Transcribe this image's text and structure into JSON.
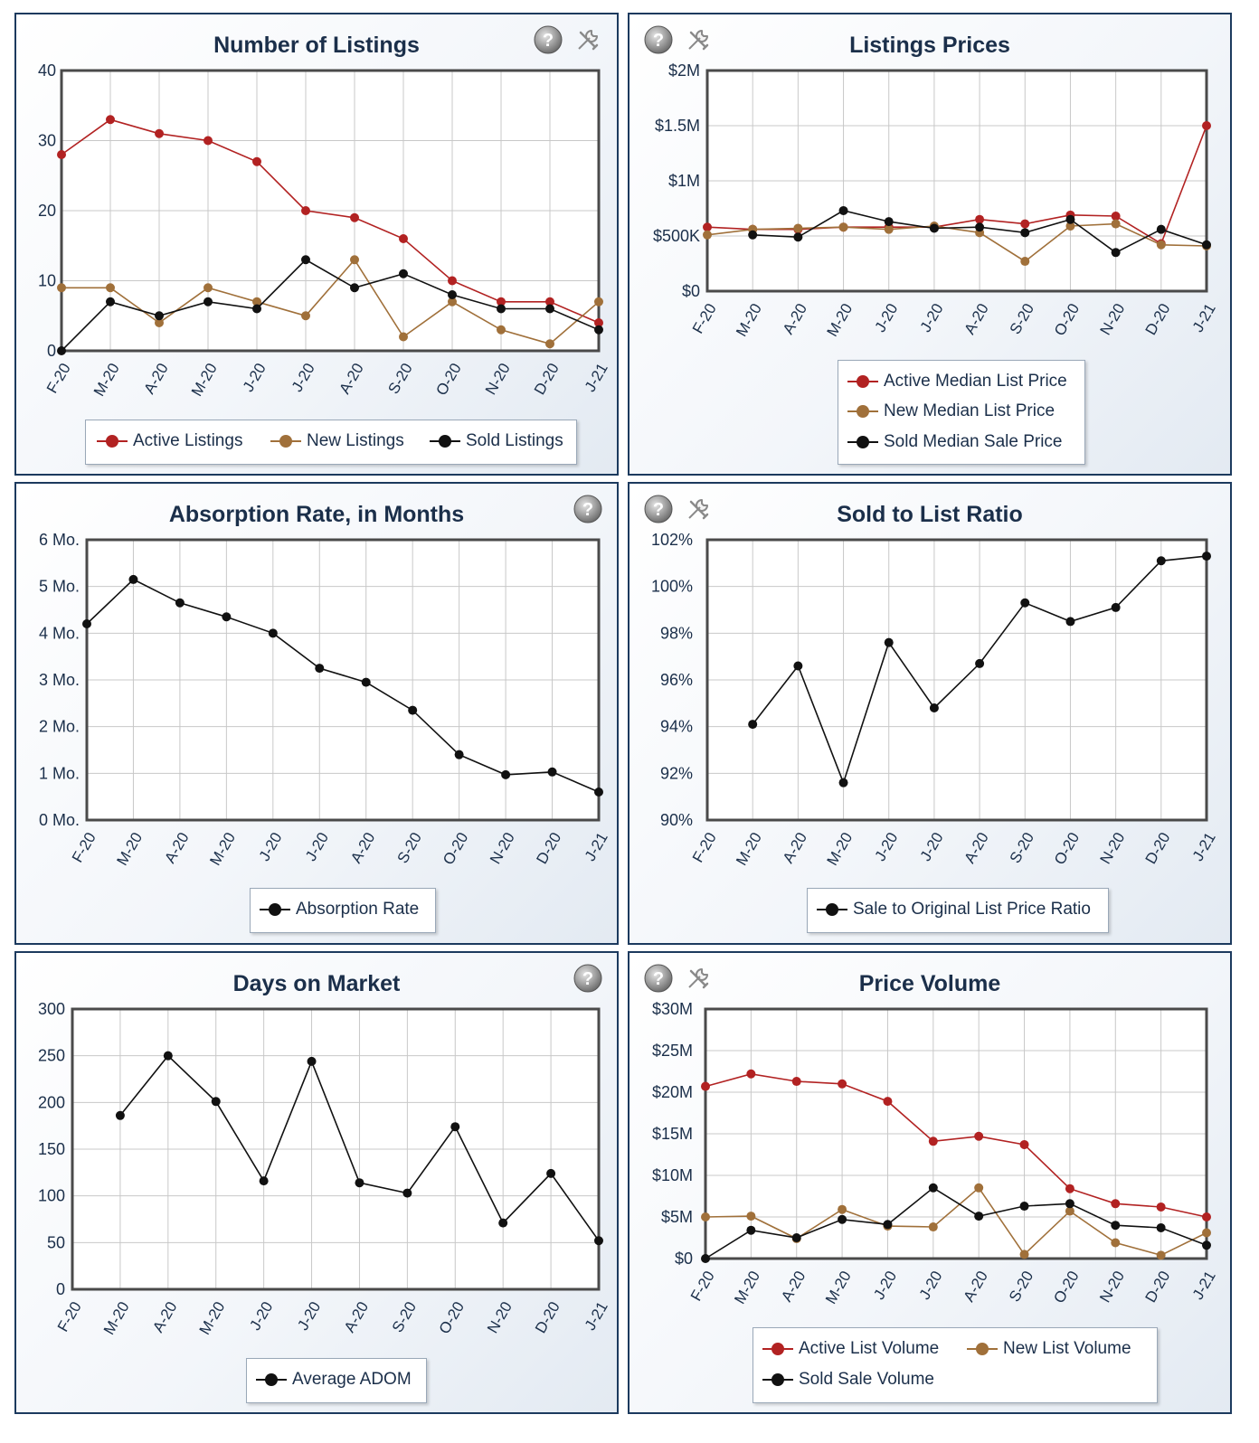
{
  "icons": {
    "help": "help-icon",
    "tools": "tools-icon"
  },
  "colors": {
    "active": "#b22222",
    "new": "#a0703a",
    "sold": "#111111",
    "grid": "#c8c8c8",
    "frame": "#4a4a4a",
    "label": "#1b2f4a"
  },
  "chart_data": [
    {
      "id": "listings",
      "type": "line",
      "title": "Number of Listings",
      "categories": [
        "F-20",
        "M-20",
        "A-20",
        "M-20",
        "J-20",
        "J-20",
        "A-20",
        "S-20",
        "O-20",
        "N-20",
        "D-20",
        "J-21"
      ],
      "ylim": [
        0,
        40
      ],
      "yticks": [
        0,
        10,
        20,
        30,
        40
      ],
      "ytick_labels": [
        "0",
        "10",
        "20",
        "30",
        "40"
      ],
      "grid": true,
      "legend": "bottom",
      "series": [
        {
          "name": "Active Listings",
          "color": "#b22222",
          "values": [
            28,
            33,
            31,
            30,
            27,
            20,
            19,
            16,
            10,
            7,
            7,
            4
          ]
        },
        {
          "name": "New Listings",
          "color": "#a0703a",
          "values": [
            9,
            9,
            4,
            9,
            7,
            5,
            13,
            2,
            7,
            3,
            1,
            7
          ]
        },
        {
          "name": "Sold Listings",
          "color": "#111111",
          "values": [
            0,
            7,
            5,
            7,
            6,
            13,
            9,
            11,
            8,
            6,
            6,
            3
          ]
        }
      ]
    },
    {
      "id": "prices",
      "type": "line",
      "title": "Listings Prices",
      "categories": [
        "F-20",
        "M-20",
        "A-20",
        "M-20",
        "J-20",
        "J-20",
        "A-20",
        "S-20",
        "O-20",
        "N-20",
        "D-20",
        "J-21"
      ],
      "ylim": [
        0,
        2000000
      ],
      "yticks": [
        0,
        500000,
        1000000,
        1500000,
        2000000
      ],
      "ytick_labels": [
        "$0",
        "$500K",
        "$1M",
        "$1.5M",
        "$2M"
      ],
      "grid": true,
      "legend": "bottom",
      "series": [
        {
          "name": "Active Median List Price",
          "color": "#b22222",
          "values": [
            580000,
            560000,
            560000,
            580000,
            580000,
            580000,
            650000,
            610000,
            690000,
            680000,
            430000,
            1500000
          ]
        },
        {
          "name": "New Median List Price",
          "color": "#a0703a",
          "values": [
            510000,
            560000,
            570000,
            580000,
            560000,
            590000,
            530000,
            270000,
            590000,
            610000,
            420000,
            410000
          ]
        },
        {
          "name": "Sold Median Sale Price",
          "color": "#111111",
          "values": [
            null,
            510000,
            490000,
            730000,
            630000,
            570000,
            580000,
            530000,
            650000,
            350000,
            560000,
            420000
          ]
        }
      ]
    },
    {
      "id": "absorption",
      "type": "line",
      "title": "Absorption Rate, in Months",
      "categories": [
        "F-20",
        "M-20",
        "A-20",
        "M-20",
        "J-20",
        "J-20",
        "A-20",
        "S-20",
        "O-20",
        "N-20",
        "D-20",
        "J-21"
      ],
      "ylim": [
        0,
        6
      ],
      "yticks": [
        0,
        1,
        2,
        3,
        4,
        5,
        6
      ],
      "ytick_labels": [
        "0 Mo.",
        "1 Mo.",
        "2 Mo.",
        "3 Mo.",
        "4 Mo.",
        "5 Mo.",
        "6 Mo."
      ],
      "grid": true,
      "legend": "bottom",
      "series": [
        {
          "name": "Absorption Rate",
          "color": "#111111",
          "values": [
            4.2,
            5.15,
            4.65,
            4.35,
            4.0,
            3.25,
            2.95,
            2.35,
            1.4,
            0.97,
            1.03,
            0.6
          ]
        }
      ]
    },
    {
      "id": "ratio",
      "type": "line",
      "title": "Sold to List Ratio",
      "categories": [
        "F-20",
        "M-20",
        "A-20",
        "M-20",
        "J-20",
        "J-20",
        "A-20",
        "S-20",
        "O-20",
        "N-20",
        "D-20",
        "J-21"
      ],
      "ylim": [
        90,
        102
      ],
      "yticks": [
        90,
        92,
        94,
        96,
        98,
        100,
        102
      ],
      "ytick_labels": [
        "90%",
        "92%",
        "94%",
        "96%",
        "98%",
        "100%",
        "102%"
      ],
      "grid": true,
      "legend": "bottom",
      "series": [
        {
          "name": "Sale to Original List Price Ratio",
          "color": "#111111",
          "values": [
            null,
            94.1,
            96.6,
            91.6,
            97.6,
            94.8,
            96.7,
            99.3,
            98.5,
            99.1,
            101.1,
            101.3
          ]
        }
      ]
    },
    {
      "id": "dom",
      "type": "line",
      "title": "Days on Market",
      "categories": [
        "F-20",
        "M-20",
        "A-20",
        "M-20",
        "J-20",
        "J-20",
        "A-20",
        "S-20",
        "O-20",
        "N-20",
        "D-20",
        "J-21"
      ],
      "ylim": [
        0,
        300
      ],
      "yticks": [
        0,
        50,
        100,
        150,
        200,
        250,
        300
      ],
      "ytick_labels": [
        "0",
        "50",
        "100",
        "150",
        "200",
        "250",
        "300"
      ],
      "grid": true,
      "legend": "bottom",
      "series": [
        {
          "name": "Average ADOM",
          "color": "#111111",
          "values": [
            null,
            186,
            250,
            201,
            116,
            244,
            114,
            103,
            174,
            71,
            124,
            52
          ]
        }
      ]
    },
    {
      "id": "volume",
      "type": "line",
      "title": "Price Volume",
      "categories": [
        "F-20",
        "M-20",
        "A-20",
        "M-20",
        "J-20",
        "J-20",
        "A-20",
        "S-20",
        "O-20",
        "N-20",
        "D-20",
        "J-21"
      ],
      "ylim": [
        0,
        30000000
      ],
      "yticks": [
        0,
        5000000,
        10000000,
        15000000,
        20000000,
        25000000,
        30000000
      ],
      "ytick_labels": [
        "$0",
        "$5M",
        "$10M",
        "$15M",
        "$20M",
        "$25M",
        "$30M"
      ],
      "grid": true,
      "legend": "bottom",
      "series": [
        {
          "name": "Active List Volume",
          "color": "#b22222",
          "values": [
            20700000,
            22200000,
            21300000,
            21000000,
            18900000,
            14100000,
            14700000,
            13700000,
            8400000,
            6600000,
            6200000,
            5000000
          ]
        },
        {
          "name": "New List Volume",
          "color": "#a0703a",
          "values": [
            5000000,
            5100000,
            2400000,
            5900000,
            3900000,
            3800000,
            8500000,
            500000,
            5700000,
            1900000,
            400000,
            3100000
          ]
        },
        {
          "name": "Sold Sale Volume",
          "color": "#111111",
          "values": [
            0,
            3400000,
            2500000,
            4700000,
            4100000,
            8500000,
            5100000,
            6300000,
            6600000,
            4000000,
            3700000,
            1600000
          ]
        }
      ]
    }
  ]
}
